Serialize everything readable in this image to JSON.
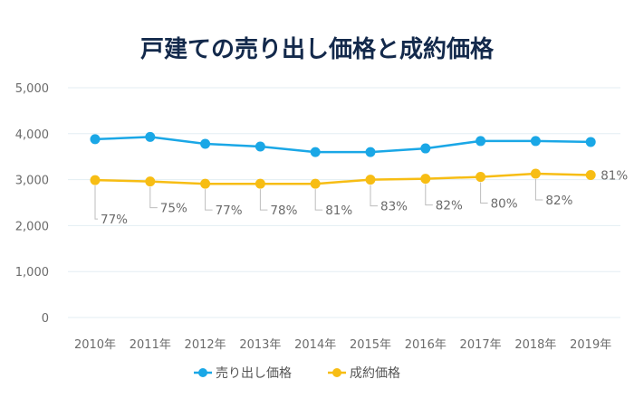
{
  "chart_data": {
    "type": "line",
    "title": "戸建ての売り出し価格と成約価格",
    "categories": [
      "2010年",
      "2011年",
      "2012年",
      "2013年",
      "2014年",
      "2015年",
      "2016年",
      "2017年",
      "2018年",
      "2019年"
    ],
    "series": [
      {
        "name": "売り出し価格",
        "color": "#1aa7e6",
        "values": [
          3880,
          3930,
          3780,
          3720,
          3600,
          3600,
          3680,
          3840,
          3840,
          3820
        ]
      },
      {
        "name": "成約価格",
        "color": "#f7bd14",
        "values": [
          2990,
          2960,
          2910,
          2910,
          2910,
          3000,
          3020,
          3060,
          3130,
          3100
        ]
      }
    ],
    "rate_labels": [
      "77%",
      "75%",
      "77%",
      "78%",
      "81%",
      "83%",
      "82%",
      "80%",
      "82%",
      "81%"
    ],
    "yticks": [
      "0",
      "1,000",
      "2,000",
      "3,000",
      "4,000",
      "5,000"
    ],
    "ylim": [
      0,
      5000
    ],
    "xlabel": "",
    "ylabel": "",
    "grid": true,
    "legend_position": "bottom-center"
  }
}
